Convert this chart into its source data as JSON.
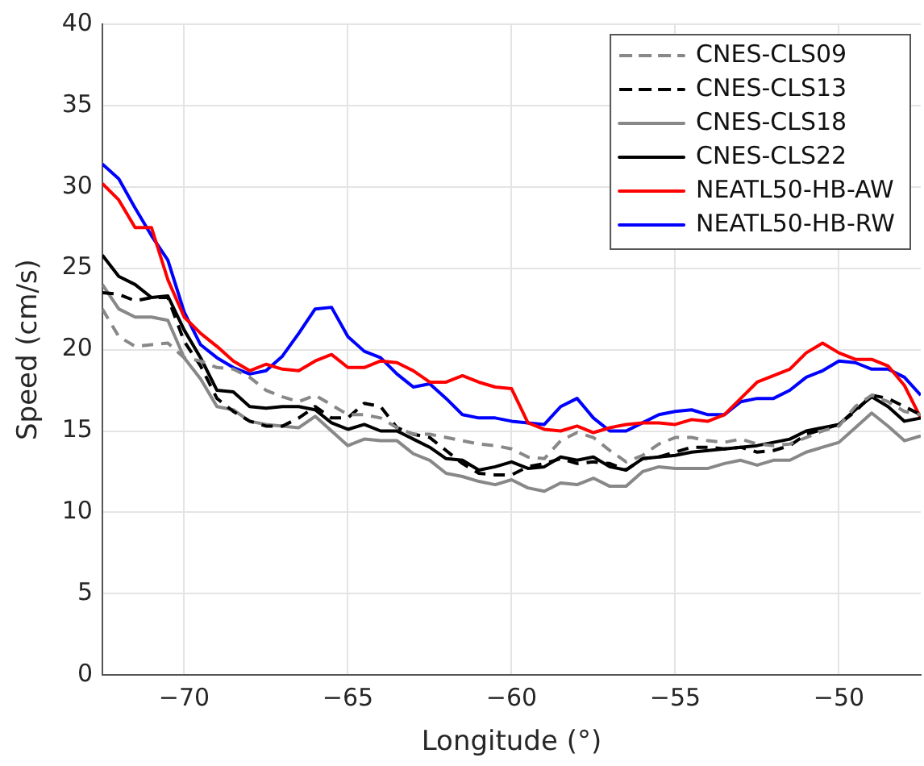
{
  "chart_data": {
    "type": "line",
    "xlabel": "Longitude (°)",
    "ylabel": "Speed (cm/s)",
    "x": [
      -72.5,
      -72,
      -71.5,
      -71,
      -70.5,
      -70,
      -69.5,
      -69,
      -68.5,
      -68,
      -67.5,
      -67,
      -66.5,
      -66,
      -65.5,
      -65,
      -64.5,
      -64,
      -63.5,
      -63,
      -62.5,
      -62,
      -61.5,
      -61,
      -60.5,
      -60,
      -59.5,
      -59,
      -58.5,
      -58,
      -57.5,
      -57,
      -56.5,
      -56,
      -55.5,
      -55,
      -54.5,
      -54,
      -53.5,
      -53,
      -52.5,
      -52,
      -51.5,
      -51,
      -50.5,
      -50,
      -49.5,
      -49,
      -48.5,
      -48,
      -47.5
    ],
    "xlim": [
      -72.5,
      -47.5
    ],
    "xticks": [
      -70,
      -65,
      -60,
      -55,
      -50
    ],
    "ylim": [
      0,
      40
    ],
    "yticks": [
      0,
      5,
      10,
      15,
      20,
      25,
      30,
      35,
      40
    ],
    "grid": true,
    "legend": "top right",
    "marker": "none",
    "series": [
      {
        "name": "CNES-CLS09",
        "color": "#888888",
        "line_style": "dashed",
        "values": [
          22.5,
          20.8,
          20.2,
          20.3,
          20.4,
          19.5,
          19.3,
          18.9,
          18.8,
          18.3,
          17.5,
          17.1,
          16.8,
          17.2,
          16.6,
          16,
          16,
          15.8,
          15.2,
          14.8,
          14.8,
          14.6,
          14.4,
          14.2,
          14.1,
          13.9,
          13.4,
          13.3,
          14.4,
          14.9,
          14.6,
          13.8,
          13.1,
          13.5,
          14.2,
          14.6,
          14.6,
          14.4,
          14.3,
          14.5,
          14.2,
          14.1,
          14.2,
          14.6,
          15,
          15.3,
          16.5,
          17.2,
          16.8,
          16.2,
          16
        ]
      },
      {
        "name": "CNES-CLS13",
        "color": "#000000",
        "line_style": "dashed",
        "values": [
          23.5,
          23.4,
          23,
          23.2,
          23.2,
          20.5,
          19,
          17,
          16.2,
          15.6,
          15.3,
          15.3,
          15.8,
          16.5,
          15.8,
          15.8,
          16.7,
          16.5,
          15.2,
          14.8,
          14.6,
          13.8,
          13,
          12.4,
          12.3,
          12.3,
          12.8,
          13,
          13.3,
          13,
          13.1,
          13,
          12.6,
          13.3,
          13.4,
          13.7,
          14,
          14,
          13.9,
          14,
          13.7,
          13.8,
          14.1,
          14.8,
          15.1,
          15.4,
          16.2,
          17.2,
          17,
          16.5,
          16
        ]
      },
      {
        "name": "CNES-CLS18",
        "color": "#888888",
        "line_style": "solid",
        "values": [
          24,
          22.5,
          22,
          22,
          21.8,
          19.5,
          18.2,
          16.5,
          16.3,
          15.6,
          15.4,
          15.3,
          15.2,
          15.9,
          15,
          14.1,
          14.5,
          14.4,
          14.4,
          13.6,
          13.2,
          12.4,
          12.2,
          11.9,
          11.7,
          12,
          11.5,
          11.3,
          11.8,
          11.7,
          12.1,
          11.6,
          11.6,
          12.5,
          12.8,
          12.7,
          12.7,
          12.7,
          13,
          13.2,
          12.9,
          13.2,
          13.2,
          13.7,
          14,
          14.3,
          15.2,
          16.1,
          15.3,
          14.4,
          14.7
        ]
      },
      {
        "name": "CNES-CLS22",
        "color": "#000000",
        "line_style": "solid",
        "values": [
          25.8,
          24.5,
          24,
          23.2,
          23.3,
          21.2,
          19.5,
          17.5,
          17.4,
          16.5,
          16.4,
          16.5,
          16.5,
          16.3,
          15.5,
          15.1,
          15.4,
          15,
          15,
          14.5,
          14,
          13.3,
          13.2,
          12.6,
          12.8,
          13.1,
          12.7,
          12.8,
          13.4,
          13.2,
          13.4,
          12.8,
          12.6,
          13.3,
          13.4,
          13.5,
          13.7,
          13.8,
          13.9,
          14,
          14.1,
          14.3,
          14.5,
          15,
          15.2,
          15.4,
          16.3,
          17.1,
          16.5,
          15.6,
          15.8
        ]
      },
      {
        "name": "NEATL50-HB-AW",
        "color": "#ff0000",
        "line_style": "solid",
        "values": [
          30.2,
          29.2,
          27.5,
          27.5,
          24.3,
          22,
          21,
          20.2,
          19.3,
          18.7,
          19.1,
          18.8,
          18.7,
          19.3,
          19.7,
          18.9,
          18.9,
          19.3,
          19.2,
          18.7,
          18,
          18,
          18.4,
          18,
          17.7,
          17.6,
          15.5,
          15.1,
          15,
          15.3,
          14.9,
          15.2,
          15.4,
          15.5,
          15.5,
          15.4,
          15.7,
          15.6,
          16,
          17,
          18,
          18.4,
          18.8,
          19.8,
          20.4,
          19.8,
          19.4,
          19.4,
          19,
          17.8,
          15.8
        ]
      },
      {
        "name": "NEATL50-HB-RW",
        "color": "#0000ff",
        "line_style": "solid",
        "values": [
          31.4,
          30.5,
          28.7,
          27,
          25.5,
          22.3,
          20.3,
          19.5,
          18.9,
          18.5,
          18.7,
          19.6,
          21,
          22.5,
          22.6,
          20.8,
          19.9,
          19.5,
          18.5,
          17.7,
          17.9,
          17,
          16,
          15.8,
          15.8,
          15.6,
          15.5,
          15.4,
          16.5,
          17,
          15.8,
          15,
          15,
          15.5,
          16,
          16.2,
          16.3,
          16,
          16,
          16.8,
          17,
          17,
          17.5,
          18.3,
          18.7,
          19.3,
          19.2,
          18.8,
          18.8,
          18.3,
          17.2
        ]
      }
    ]
  }
}
